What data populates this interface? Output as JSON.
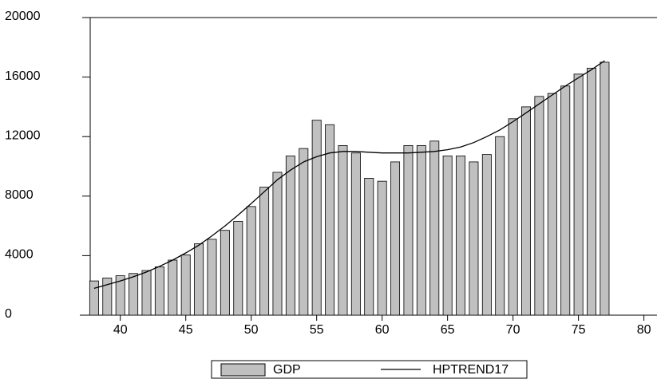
{
  "chart_data": {
    "type": "bar-line",
    "x": [
      38,
      39,
      40,
      41,
      42,
      43,
      44,
      45,
      46,
      47,
      48,
      49,
      50,
      51,
      52,
      53,
      54,
      55,
      56,
      57,
      58,
      59,
      60,
      61,
      62,
      63,
      64,
      65,
      66,
      67,
      68,
      69,
      70,
      71,
      72,
      73,
      74,
      75,
      76,
      77
    ],
    "series": [
      {
        "name": "GDP",
        "kind": "bar",
        "color": "#c0c0c0",
        "values": [
          2300,
          2500,
          2650,
          2800,
          3000,
          3250,
          3700,
          4050,
          4800,
          5100,
          5700,
          6300,
          7300,
          8600,
          9600,
          10700,
          11200,
          13100,
          12800,
          11400,
          10900,
          9200,
          9000,
          10300,
          11400,
          11400,
          11700,
          10700,
          10700,
          10300,
          10800,
          12000,
          13200,
          14000,
          14700,
          14900,
          15400,
          16200,
          16600,
          17000
        ]
      },
      {
        "name": "HPTREND17",
        "kind": "line",
        "color": "#000000",
        "values": [
          1800,
          2050,
          2300,
          2580,
          2900,
          3280,
          3700,
          4180,
          4700,
          5330,
          6000,
          6730,
          7500,
          8300,
          9100,
          9750,
          10300,
          10650,
          10900,
          11000,
          11000,
          10950,
          10900,
          10900,
          10900,
          10950,
          11000,
          11120,
          11300,
          11600,
          12000,
          12450,
          13000,
          13600,
          14200,
          14800,
          15400,
          15950,
          16500,
          17100
        ]
      }
    ],
    "xlim": [
      37.7,
      81
    ],
    "xticks": [
      40,
      45,
      50,
      55,
      60,
      65,
      70,
      75,
      80
    ],
    "ylim": [
      0,
      20000
    ],
    "yticks": [
      0,
      4000,
      8000,
      12000,
      16000,
      20000
    ]
  }
}
